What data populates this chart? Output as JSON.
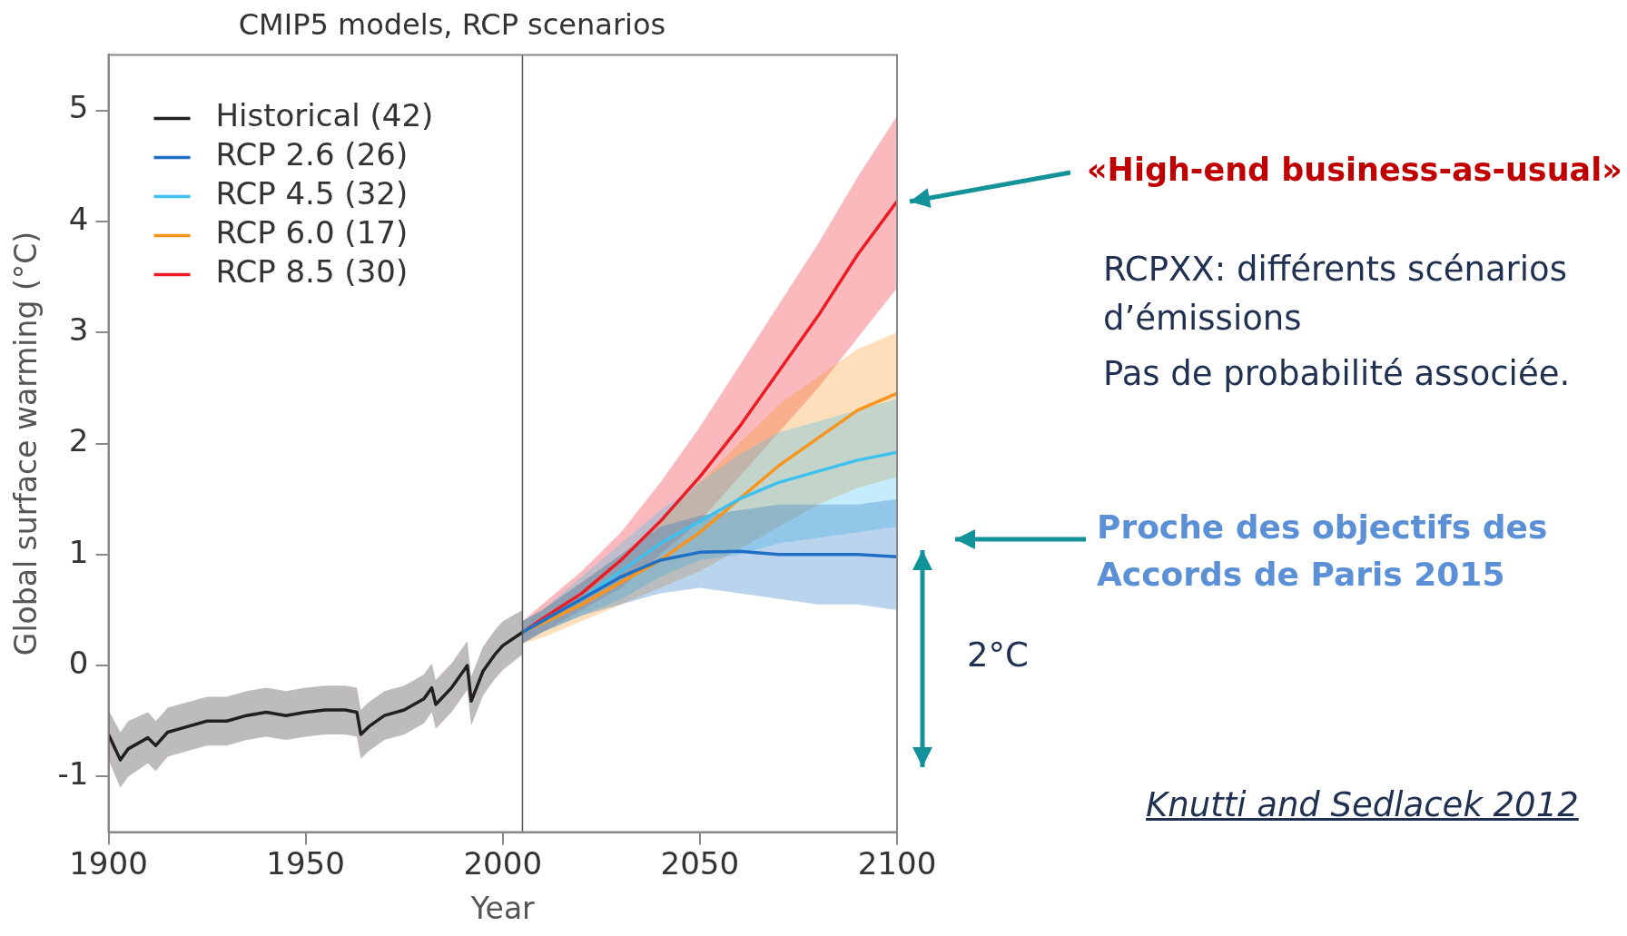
{
  "chart_data": {
    "type": "line",
    "title": "CMIP5 models, RCP scenarios",
    "xlabel": "Year",
    "ylabel": "Global surface warming (°C)",
    "xlim": [
      1900,
      2100
    ],
    "ylim": [
      -1.5,
      5.5
    ],
    "xticks": [
      1900,
      1950,
      2000,
      2050,
      2100
    ],
    "yticks": [
      -1,
      0,
      1,
      2,
      3,
      4,
      5
    ],
    "legend": "top left",
    "marker": "none",
    "ref_lines": [
      {
        "axis": "x",
        "value": 2005,
        "color": "#555555"
      }
    ],
    "series": [
      {
        "name": "Historical (42)",
        "color": "#231f20",
        "x": [
          1900,
          1903,
          1905,
          1910,
          1912,
          1915,
          1920,
          1925,
          1930,
          1935,
          1940,
          1945,
          1950,
          1955,
          1960,
          1963,
          1964,
          1966,
          1970,
          1975,
          1980,
          1982,
          1983,
          1987,
          1990,
          1991,
          1992,
          1995,
          1998,
          2000,
          2005
        ],
        "values": [
          -0.62,
          -0.85,
          -0.75,
          -0.65,
          -0.72,
          -0.6,
          -0.55,
          -0.5,
          -0.5,
          -0.45,
          -0.42,
          -0.45,
          -0.42,
          -0.4,
          -0.4,
          -0.42,
          -0.62,
          -0.55,
          -0.45,
          -0.4,
          -0.3,
          -0.2,
          -0.35,
          -0.2,
          -0.05,
          0,
          -0.32,
          -0.05,
          0.1,
          0.18,
          0.3
        ],
        "lower": [
          -0.85,
          -1.1,
          -1.0,
          -0.88,
          -0.95,
          -0.82,
          -0.77,
          -0.72,
          -0.72,
          -0.67,
          -0.64,
          -0.67,
          -0.64,
          -0.62,
          -0.62,
          -0.64,
          -0.84,
          -0.77,
          -0.67,
          -0.62,
          -0.52,
          -0.42,
          -0.57,
          -0.42,
          -0.27,
          -0.22,
          -0.54,
          -0.27,
          -0.12,
          -0.04,
          0.1
        ],
        "upper": [
          -0.4,
          -0.6,
          -0.5,
          -0.42,
          -0.5,
          -0.38,
          -0.33,
          -0.28,
          -0.28,
          -0.23,
          -0.2,
          -0.23,
          -0.2,
          -0.18,
          -0.18,
          -0.2,
          -0.4,
          -0.33,
          -0.23,
          -0.18,
          -0.08,
          0.02,
          -0.13,
          0.02,
          0.17,
          0.22,
          -0.1,
          0.17,
          0.32,
          0.4,
          0.5
        ]
      },
      {
        "name": "RCP 2.6 (26)",
        "color": "#1f6fc5",
        "x": [
          2005,
          2010,
          2020,
          2030,
          2040,
          2050,
          2060,
          2070,
          2080,
          2090,
          2100
        ],
        "values": [
          0.3,
          0.4,
          0.6,
          0.8,
          0.95,
          1.02,
          1.03,
          1.0,
          1.0,
          1.0,
          0.98
        ],
        "lower": [
          0.2,
          0.3,
          0.45,
          0.55,
          0.65,
          0.7,
          0.65,
          0.6,
          0.55,
          0.55,
          0.5
        ],
        "upper": [
          0.4,
          0.5,
          0.75,
          1.0,
          1.25,
          1.35,
          1.4,
          1.45,
          1.45,
          1.45,
          1.5
        ]
      },
      {
        "name": "RCP 4.5 (32)",
        "color": "#3fc1f0",
        "x": [
          2005,
          2010,
          2020,
          2030,
          2040,
          2050,
          2060,
          2070,
          2080,
          2090,
          2100
        ],
        "values": [
          0.3,
          0.4,
          0.6,
          0.85,
          1.1,
          1.3,
          1.5,
          1.65,
          1.75,
          1.85,
          1.92
        ],
        "lower": [
          0.2,
          0.3,
          0.45,
          0.6,
          0.8,
          0.95,
          1.0,
          1.1,
          1.15,
          1.2,
          1.25
        ],
        "upper": [
          0.4,
          0.5,
          0.8,
          1.1,
          1.4,
          1.65,
          1.9,
          2.1,
          2.2,
          2.3,
          2.4
        ]
      },
      {
        "name": "RCP 6.0 (17)",
        "color": "#f7941d",
        "x": [
          2005,
          2010,
          2020,
          2030,
          2040,
          2050,
          2060,
          2070,
          2080,
          2090,
          2100
        ],
        "values": [
          0.3,
          0.38,
          0.55,
          0.75,
          0.95,
          1.2,
          1.5,
          1.8,
          2.05,
          2.3,
          2.45
        ],
        "lower": [
          0.2,
          0.25,
          0.4,
          0.55,
          0.7,
          0.85,
          1.05,
          1.25,
          1.45,
          1.6,
          1.7
        ],
        "upper": [
          0.4,
          0.5,
          0.75,
          1.0,
          1.3,
          1.65,
          2.0,
          2.35,
          2.6,
          2.85,
          3.0
        ]
      },
      {
        "name": "RCP 8.5 (30)",
        "color": "#ed1c24",
        "x": [
          2005,
          2010,
          2020,
          2030,
          2040,
          2050,
          2060,
          2070,
          2080,
          2090,
          2100
        ],
        "values": [
          0.3,
          0.42,
          0.65,
          0.95,
          1.3,
          1.7,
          2.15,
          2.65,
          3.15,
          3.7,
          4.18
        ],
        "lower": [
          0.2,
          0.3,
          0.5,
          0.7,
          1.0,
          1.3,
          1.7,
          2.1,
          2.5,
          2.95,
          3.4
        ],
        "upper": [
          0.4,
          0.55,
          0.85,
          1.2,
          1.65,
          2.15,
          2.7,
          3.25,
          3.8,
          4.4,
          4.95
        ]
      }
    ],
    "annotations": [
      "«High-end business-as-usual»",
      "RCPXX: différents scénarios d’émissions",
      "Pas de probabilité associée.",
      "Proche des objectifs des Accords de Paris 2015",
      "2°C",
      "Knutti and Sedlacek 2012"
    ]
  }
}
